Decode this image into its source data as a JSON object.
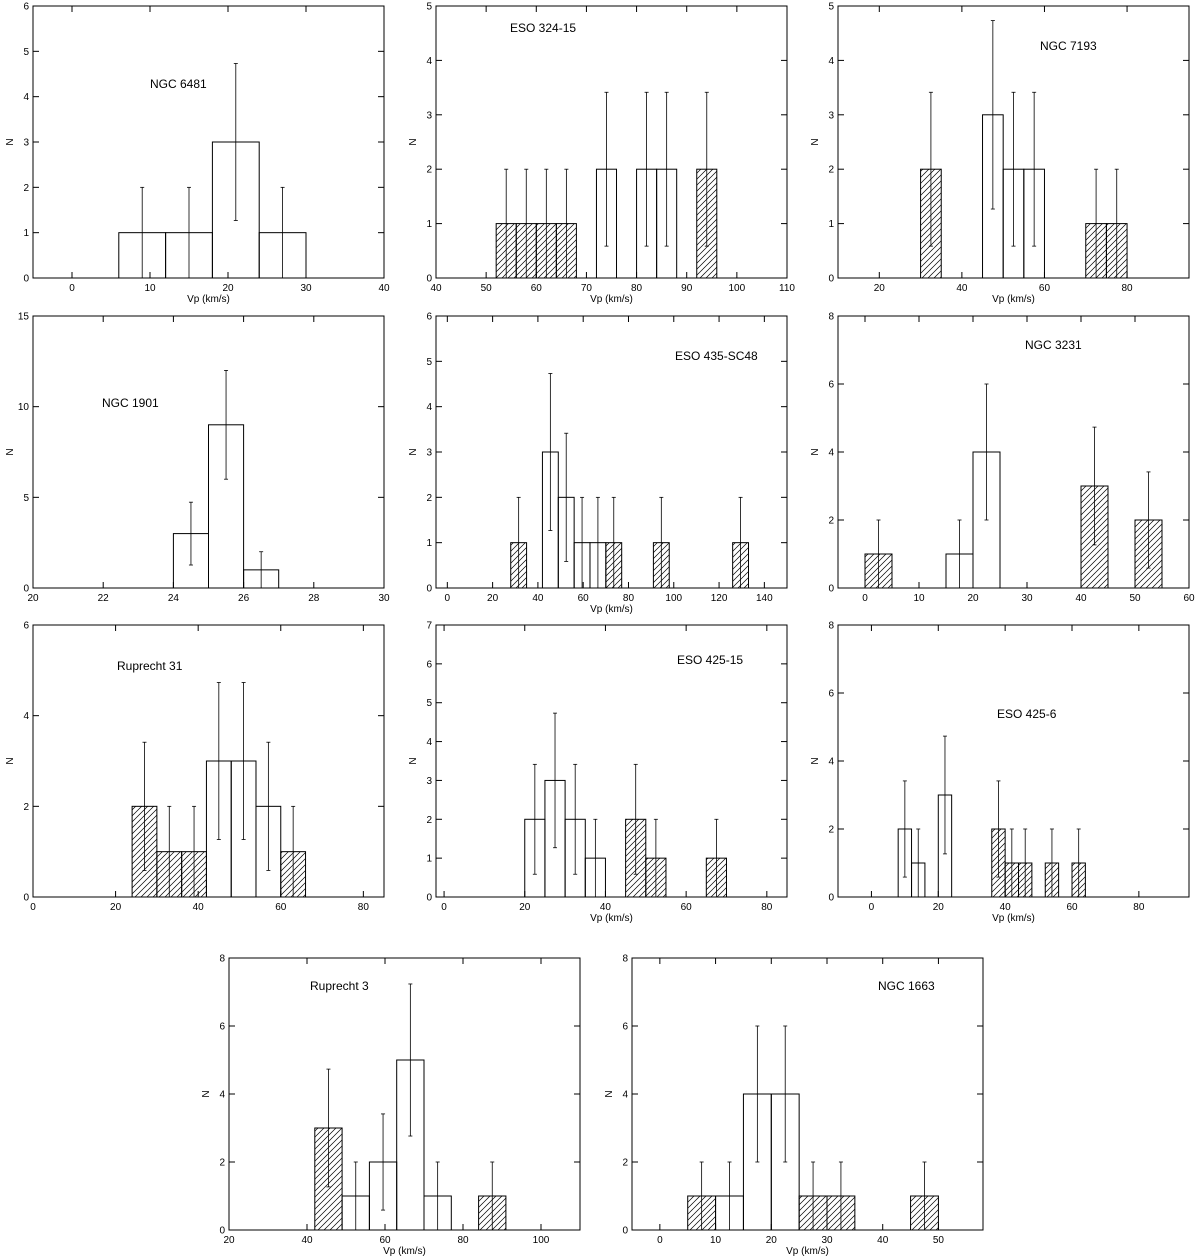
{
  "chart_data": [
    {
      "type": "bar",
      "title": "NGC 6481",
      "xlabel": "Vp (km/s)",
      "ylabel": "N",
      "xlim": [
        -5,
        40
      ],
      "ylim": [
        0,
        6
      ],
      "xticks": [
        0,
        10,
        20,
        30,
        40
      ],
      "yticks": [
        0,
        1,
        2,
        3,
        4,
        5,
        6
      ],
      "bins": [
        {
          "x0": 6,
          "x1": 12,
          "n": 1,
          "hatched": false
        },
        {
          "x0": 12,
          "x1": 18,
          "n": 1,
          "hatched": false
        },
        {
          "x0": 18,
          "x1": 24,
          "n": 3,
          "hatched": false
        },
        {
          "x0": 24,
          "x1": 30,
          "n": 1,
          "hatched": false
        }
      ]
    },
    {
      "type": "bar",
      "title": "ESO 324-15",
      "xlabel": "Vp (km/s)",
      "ylabel": "N",
      "xlim": [
        40,
        110
      ],
      "ylim": [
        0,
        5
      ],
      "xticks": [
        40,
        50,
        60,
        70,
        80,
        90,
        100,
        110
      ],
      "yticks": [
        0,
        1,
        2,
        3,
        4,
        5
      ],
      "bins": [
        {
          "x0": 52,
          "x1": 56,
          "n": 1,
          "hatched": true
        },
        {
          "x0": 56,
          "x1": 60,
          "n": 1,
          "hatched": true
        },
        {
          "x0": 60,
          "x1": 64,
          "n": 1,
          "hatched": true
        },
        {
          "x0": 64,
          "x1": 68,
          "n": 1,
          "hatched": true
        },
        {
          "x0": 72,
          "x1": 76,
          "n": 2,
          "hatched": false
        },
        {
          "x0": 80,
          "x1": 84,
          "n": 2,
          "hatched": false
        },
        {
          "x0": 84,
          "x1": 88,
          "n": 2,
          "hatched": false
        },
        {
          "x0": 92,
          "x1": 96,
          "n": 2,
          "hatched": true
        }
      ]
    },
    {
      "type": "bar",
      "title": "NGC 7193",
      "xlabel": "Vp (km/s)",
      "ylabel": "N",
      "xlim": [
        10,
        95
      ],
      "ylim": [
        0,
        5
      ],
      "xticks": [
        20,
        40,
        60,
        80
      ],
      "yticks": [
        0,
        1,
        2,
        3,
        4,
        5
      ],
      "bins": [
        {
          "x0": 30,
          "x1": 35,
          "n": 2,
          "hatched": true
        },
        {
          "x0": 45,
          "x1": 50,
          "n": 3,
          "hatched": false
        },
        {
          "x0": 50,
          "x1": 55,
          "n": 2,
          "hatched": false
        },
        {
          "x0": 55,
          "x1": 60,
          "n": 2,
          "hatched": false
        },
        {
          "x0": 70,
          "x1": 75,
          "n": 1,
          "hatched": true
        },
        {
          "x0": 75,
          "x1": 80,
          "n": 1,
          "hatched": true
        }
      ]
    },
    {
      "type": "bar",
      "title": "NGC 1901",
      "xlabel": "",
      "ylabel": "N",
      "xlim": [
        20,
        30
      ],
      "ylim": [
        0,
        15
      ],
      "xticks": [
        20,
        22,
        24,
        26,
        28,
        30
      ],
      "yticks": [
        0,
        5,
        10,
        15
      ],
      "bins": [
        {
          "x0": 24,
          "x1": 25,
          "n": 3,
          "hatched": false
        },
        {
          "x0": 25,
          "x1": 26,
          "n": 9,
          "hatched": false
        },
        {
          "x0": 26,
          "x1": 27,
          "n": 1,
          "hatched": false
        }
      ]
    },
    {
      "type": "bar",
      "title": "ESO 435-SC48",
      "xlabel": "Vp (km/s)",
      "ylabel": "N",
      "xlim": [
        -5,
        150
      ],
      "ylim": [
        0,
        6
      ],
      "xticks": [
        0,
        20,
        40,
        60,
        80,
        100,
        120,
        140
      ],
      "yticks": [
        0,
        1,
        2,
        3,
        4,
        5,
        6
      ],
      "bins": [
        {
          "x0": 28,
          "x1": 35,
          "n": 1,
          "hatched": true
        },
        {
          "x0": 42,
          "x1": 49,
          "n": 3,
          "hatched": false
        },
        {
          "x0": 49,
          "x1": 56,
          "n": 2,
          "hatched": false
        },
        {
          "x0": 56,
          "x1": 63,
          "n": 1,
          "hatched": false
        },
        {
          "x0": 63,
          "x1": 70,
          "n": 1,
          "hatched": false
        },
        {
          "x0": 70,
          "x1": 77,
          "n": 1,
          "hatched": true
        },
        {
          "x0": 91,
          "x1": 98,
          "n": 1,
          "hatched": true
        },
        {
          "x0": 126,
          "x1": 133,
          "n": 1,
          "hatched": true
        }
      ]
    },
    {
      "type": "bar",
      "title": "NGC 3231",
      "xlabel": "",
      "ylabel": "N",
      "xlim": [
        -5,
        60
      ],
      "ylim": [
        0,
        8
      ],
      "xticks": [
        0,
        10,
        20,
        30,
        40,
        50,
        60
      ],
      "yticks": [
        0,
        2,
        4,
        6,
        8
      ],
      "bins": [
        {
          "x0": 0,
          "x1": 5,
          "n": 1,
          "hatched": true
        },
        {
          "x0": 15,
          "x1": 20,
          "n": 1,
          "hatched": false
        },
        {
          "x0": 20,
          "x1": 25,
          "n": 4,
          "hatched": false
        },
        {
          "x0": 40,
          "x1": 45,
          "n": 3,
          "hatched": true
        },
        {
          "x0": 50,
          "x1": 55,
          "n": 2,
          "hatched": true
        }
      ]
    },
    {
      "type": "bar",
      "title": "Ruprecht 31",
      "xlabel": "",
      "ylabel": "N",
      "xlim": [
        0,
        85
      ],
      "ylim": [
        0,
        6
      ],
      "xticks": [
        0,
        20,
        40,
        60,
        80
      ],
      "yticks": [
        0,
        2,
        4,
        6
      ],
      "bins": [
        {
          "x0": 24,
          "x1": 30,
          "n": 2,
          "hatched": true
        },
        {
          "x0": 30,
          "x1": 36,
          "n": 1,
          "hatched": true
        },
        {
          "x0": 36,
          "x1": 42,
          "n": 1,
          "hatched": true
        },
        {
          "x0": 42,
          "x1": 48,
          "n": 3,
          "hatched": false
        },
        {
          "x0": 48,
          "x1": 54,
          "n": 3,
          "hatched": false
        },
        {
          "x0": 54,
          "x1": 60,
          "n": 2,
          "hatched": false
        },
        {
          "x0": 60,
          "x1": 66,
          "n": 1,
          "hatched": true
        }
      ]
    },
    {
      "type": "bar",
      "title": "ESO 425-15",
      "xlabel": "Vp (km/s)",
      "ylabel": "N",
      "xlim": [
        -2,
        85
      ],
      "ylim": [
        0,
        7
      ],
      "xticks": [
        0,
        20,
        40,
        60,
        80
      ],
      "yticks": [
        0,
        1,
        2,
        3,
        4,
        5,
        6,
        7
      ],
      "bins": [
        {
          "x0": 20,
          "x1": 25,
          "n": 2,
          "hatched": false
        },
        {
          "x0": 25,
          "x1": 30,
          "n": 3,
          "hatched": false
        },
        {
          "x0": 30,
          "x1": 35,
          "n": 2,
          "hatched": false
        },
        {
          "x0": 35,
          "x1": 40,
          "n": 1,
          "hatched": false
        },
        {
          "x0": 45,
          "x1": 50,
          "n": 2,
          "hatched": true
        },
        {
          "x0": 50,
          "x1": 55,
          "n": 1,
          "hatched": true
        },
        {
          "x0": 65,
          "x1": 70,
          "n": 1,
          "hatched": true
        }
      ]
    },
    {
      "type": "bar",
      "title": "ESO 425-6",
      "xlabel": "Vp (km/s)",
      "ylabel": "N",
      "xlim": [
        -10,
        95
      ],
      "ylim": [
        0,
        8
      ],
      "xticks": [
        0,
        20,
        40,
        60,
        80
      ],
      "yticks": [
        0,
        2,
        4,
        6,
        8
      ],
      "bins": [
        {
          "x0": 8,
          "x1": 12,
          "n": 2,
          "hatched": false
        },
        {
          "x0": 12,
          "x1": 16,
          "n": 1,
          "hatched": false
        },
        {
          "x0": 20,
          "x1": 24,
          "n": 3,
          "hatched": false
        },
        {
          "x0": 36,
          "x1": 40,
          "n": 2,
          "hatched": true
        },
        {
          "x0": 40,
          "x1": 44,
          "n": 1,
          "hatched": true
        },
        {
          "x0": 44,
          "x1": 48,
          "n": 1,
          "hatched": true
        },
        {
          "x0": 52,
          "x1": 56,
          "n": 1,
          "hatched": true
        },
        {
          "x0": 60,
          "x1": 64,
          "n": 1,
          "hatched": true
        }
      ]
    },
    {
      "type": "bar",
      "title": "Ruprecht 3",
      "xlabel": "Vp (km/s)",
      "ylabel": "N",
      "xlim": [
        20,
        110
      ],
      "ylim": [
        0,
        8
      ],
      "xticks": [
        20,
        40,
        60,
        80,
        100
      ],
      "yticks": [
        0,
        2,
        4,
        6,
        8
      ],
      "bins": [
        {
          "x0": 42,
          "x1": 49,
          "n": 3,
          "hatched": true
        },
        {
          "x0": 49,
          "x1": 56,
          "n": 1,
          "hatched": false
        },
        {
          "x0": 56,
          "x1": 63,
          "n": 2,
          "hatched": false
        },
        {
          "x0": 63,
          "x1": 70,
          "n": 5,
          "hatched": false
        },
        {
          "x0": 70,
          "x1": 77,
          "n": 1,
          "hatched": false
        },
        {
          "x0": 84,
          "x1": 91,
          "n": 1,
          "hatched": true
        }
      ]
    },
    {
      "type": "bar",
      "title": "NGC 1663",
      "xlabel": "Vp (km/s)",
      "ylabel": "N",
      "xlim": [
        -5,
        58
      ],
      "ylim": [
        0,
        8
      ],
      "xticks": [
        0,
        10,
        20,
        30,
        40,
        50
      ],
      "yticks": [
        0,
        2,
        4,
        6,
        8
      ],
      "bins": [
        {
          "x0": 5,
          "x1": 10,
          "n": 1,
          "hatched": true
        },
        {
          "x0": 10,
          "x1": 15,
          "n": 1,
          "hatched": false
        },
        {
          "x0": 15,
          "x1": 20,
          "n": 4,
          "hatched": false
        },
        {
          "x0": 20,
          "x1": 25,
          "n": 4,
          "hatched": false
        },
        {
          "x0": 25,
          "x1": 30,
          "n": 1,
          "hatched": true
        },
        {
          "x0": 30,
          "x1": 35,
          "n": 1,
          "hatched": true
        },
        {
          "x0": 45,
          "x1": 50,
          "n": 1,
          "hatched": true
        }
      ]
    }
  ]
}
